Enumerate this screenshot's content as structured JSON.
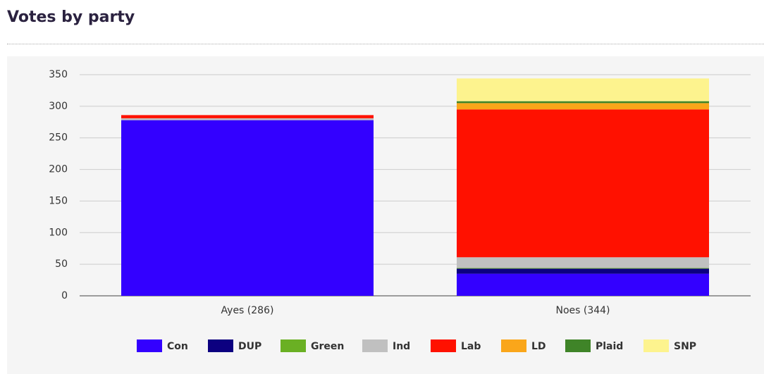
{
  "chart_data": {
    "type": "stacked_bar",
    "title": "Votes by party",
    "categories": [
      "Ayes (286)",
      "Noes (344)"
    ],
    "series": [
      {
        "name": "Con",
        "color": "#3300ff",
        "values": [
          278,
          35
        ]
      },
      {
        "name": "DUP",
        "color": "#0c0080",
        "values": [
          0,
          8
        ]
      },
      {
        "name": "Green",
        "color": "#6ab023",
        "values": [
          0,
          1
        ]
      },
      {
        "name": "Ind",
        "color": "#c0c0c0",
        "values": [
          3,
          17
        ]
      },
      {
        "name": "Lab",
        "color": "#ff1100",
        "values": [
          5,
          234
        ]
      },
      {
        "name": "LD",
        "color": "#faa61a",
        "values": [
          0,
          10
        ]
      },
      {
        "name": "Plaid",
        "color": "#3f8428",
        "values": [
          0,
          3
        ]
      },
      {
        "name": "SNP",
        "color": "#fdf38e",
        "values": [
          0,
          36
        ]
      }
    ],
    "ylim": [
      0,
      350
    ],
    "yticks": [
      0,
      50,
      100,
      150,
      200,
      250,
      300,
      350
    ],
    "grid": true
  }
}
